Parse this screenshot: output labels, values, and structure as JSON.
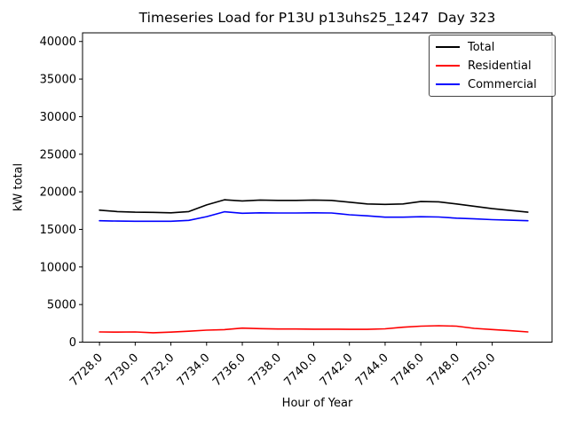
{
  "figure": {
    "background": "#ffffff"
  },
  "chart_data": {
    "type": "line",
    "title": "Timeseries Load for P13U p13uhs25_1247  Day 323",
    "xlabel": "Hour of Year",
    "ylabel": "kW total",
    "grid": false,
    "tick_rotation_deg": 45,
    "xlim": [
      7727.05,
      7753.35
    ],
    "ylim": [
      0,
      41150
    ],
    "x": [
      7728,
      7729,
      7730,
      7731,
      7732,
      7733,
      7734,
      7735,
      7736,
      7737,
      7738,
      7739,
      7740,
      7741,
      7742,
      7743,
      7744,
      7745,
      7746,
      7747,
      7748,
      7749,
      7750,
      7751,
      7752
    ],
    "series": [
      {
        "name": "Total",
        "color": "#000000",
        "values": [
          17560,
          17370,
          17290,
          17260,
          17200,
          17370,
          18250,
          18940,
          18790,
          18900,
          18860,
          18860,
          18900,
          18860,
          18620,
          18380,
          18320,
          18380,
          18700,
          18670,
          18380,
          18080,
          17760,
          17520,
          17290
        ]
      },
      {
        "name": "Residential",
        "color": "#ff0000",
        "values": [
          1360,
          1330,
          1360,
          1250,
          1330,
          1450,
          1590,
          1670,
          1860,
          1800,
          1750,
          1750,
          1720,
          1720,
          1700,
          1700,
          1770,
          1980,
          2130,
          2180,
          2130,
          1830,
          1680,
          1520,
          1360
        ]
      },
      {
        "name": "Commercial",
        "color": "#0000ff",
        "values": [
          16150,
          16100,
          16080,
          16080,
          16080,
          16200,
          16700,
          17350,
          17150,
          17200,
          17180,
          17180,
          17200,
          17180,
          16950,
          16800,
          16620,
          16620,
          16680,
          16650,
          16500,
          16400,
          16300,
          16220,
          16150
        ]
      }
    ],
    "xticks": {
      "values": [
        7728,
        7730,
        7732,
        7734,
        7736,
        7738,
        7740,
        7742,
        7744,
        7746,
        7748,
        7750
      ],
      "labels": [
        "7728.0",
        "7730.0",
        "7732.0",
        "7734.0",
        "7736.0",
        "7738.0",
        "7740.0",
        "7742.0",
        "7744.0",
        "7746.0",
        "7748.0",
        "7750.0"
      ]
    },
    "yticks": {
      "values": [
        0,
        5000,
        10000,
        15000,
        20000,
        25000,
        30000,
        35000,
        40000
      ],
      "labels": [
        "0",
        "5000",
        "10000",
        "15000",
        "20000",
        "25000",
        "30000",
        "35000",
        "40000"
      ]
    },
    "legend": {
      "position": "upper right"
    }
  }
}
